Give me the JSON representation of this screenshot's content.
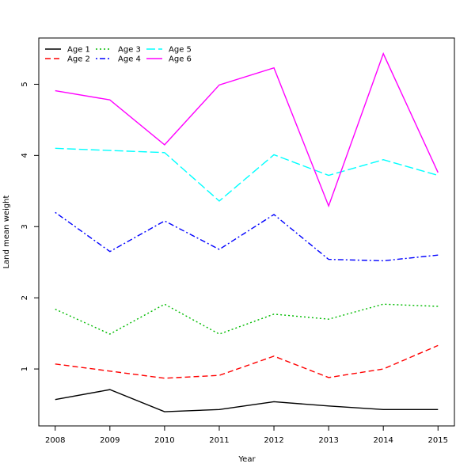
{
  "chart_data": {
    "type": "line",
    "title": "",
    "xlabel": "Year",
    "ylabel": "Land mean weight",
    "x": [
      2008,
      2009,
      2010,
      2011,
      2012,
      2013,
      2014,
      2015
    ],
    "xlim": [
      2007.7,
      2015.3
    ],
    "ylim": [
      0.2,
      5.65
    ],
    "yticks": [
      1,
      2,
      3,
      4,
      5
    ],
    "grid": false,
    "legend_position": "top-left",
    "series": [
      {
        "name": "Age 1",
        "color": "#000000",
        "dash": "solid",
        "values": [
          0.57,
          0.71,
          0.4,
          0.43,
          0.54,
          0.48,
          0.43,
          0.43
        ]
      },
      {
        "name": "Age 2",
        "color": "#ff0000",
        "dash": "dashed",
        "values": [
          1.07,
          0.97,
          0.87,
          0.91,
          1.18,
          0.88,
          1.0,
          1.33
        ]
      },
      {
        "name": "Age 3",
        "color": "#00bb00",
        "dash": "dotted",
        "values": [
          1.84,
          1.49,
          1.91,
          1.49,
          1.77,
          1.7,
          1.91,
          1.88
        ]
      },
      {
        "name": "Age 4",
        "color": "#0000ff",
        "dash": "dotdash",
        "values": [
          3.2,
          2.65,
          3.08,
          2.68,
          3.17,
          2.54,
          2.52,
          2.6
        ]
      },
      {
        "name": "Age 5",
        "color": "#00ffff",
        "dash": "longdash",
        "values": [
          4.1,
          4.07,
          4.04,
          3.36,
          4.01,
          3.72,
          3.94,
          3.72
        ]
      },
      {
        "name": "Age 6",
        "color": "#ff00ff",
        "dash": "solid",
        "values": [
          4.91,
          4.78,
          4.15,
          4.99,
          5.23,
          3.29,
          5.43,
          3.76
        ]
      }
    ]
  }
}
